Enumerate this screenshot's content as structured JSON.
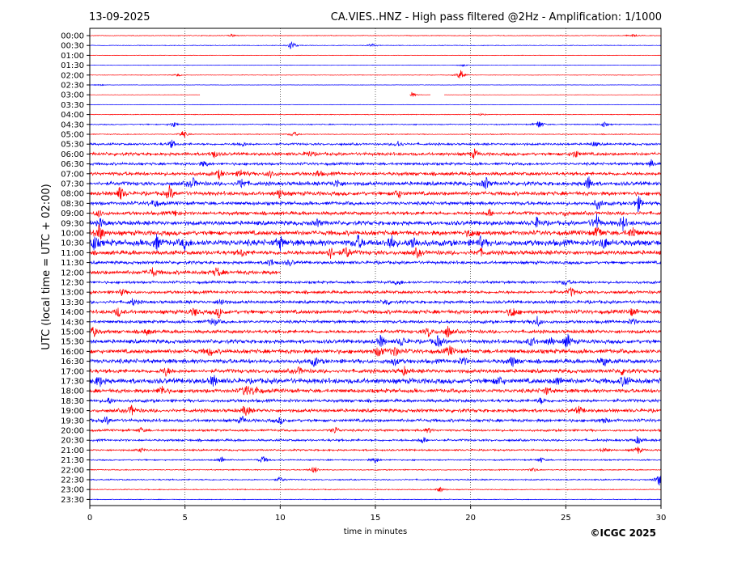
{
  "header": {
    "date": "13-09-2025",
    "title": "CA.VIES..HNZ - High pass filtered @2Hz - Amplification: 1/1000"
  },
  "footer": {
    "copyright": "©ICGC 2025"
  },
  "chart_data": {
    "type": "line",
    "title": "CA.VIES..HNZ - High pass filtered @2Hz - Amplification: 1/1000",
    "xlabel": "time in minutes",
    "ylabel": "UTC (local time = UTC + 02:00)",
    "xlim": [
      0,
      30
    ],
    "x_ticks": [
      "0",
      "5",
      "10",
      "15",
      "20",
      "25",
      "30"
    ],
    "vertical_gridlines": "dotted at every 5 minutes",
    "row_labels": [
      "00:00",
      "00:30",
      "01:00",
      "01:30",
      "02:00",
      "02:30",
      "03:00",
      "03:30",
      "04:00",
      "04:30",
      "05:00",
      "05:30",
      "06:00",
      "06:30",
      "07:00",
      "07:30",
      "08:00",
      "08:30",
      "09:00",
      "09:30",
      "10:00",
      "10:30",
      "11:00",
      "11:30",
      "12:00",
      "12:30",
      "13:00",
      "13:30",
      "14:00",
      "14:30",
      "15:00",
      "15:30",
      "16:00",
      "16:30",
      "17:00",
      "17:30",
      "18:00",
      "18:30",
      "19:00",
      "19:30",
      "20:00",
      "20:30",
      "21:00",
      "21:30",
      "22:00",
      "22:30",
      "23:00",
      "23:30"
    ],
    "series_colors": {
      "even_rows": "#ff0000",
      "odd_rows": "#0000ff"
    },
    "traces": [
      {
        "time": "00:00",
        "color": "red",
        "noise": 0.08,
        "events": [
          [
            7.5,
            0.3
          ],
          [
            28.5,
            0.3
          ]
        ]
      },
      {
        "time": "00:30",
        "color": "blue",
        "noise": 0.08,
        "events": [
          [
            10.6,
            1.0
          ],
          [
            14.8,
            0.4
          ]
        ]
      },
      {
        "time": "01:00",
        "color": "red",
        "noise": 0.05,
        "events": []
      },
      {
        "time": "01:30",
        "color": "blue",
        "noise": 0.05,
        "events": [
          [
            19.6,
            0.2
          ]
        ]
      },
      {
        "time": "02:00",
        "color": "red",
        "noise": 0.06,
        "events": [
          [
            4.6,
            0.3
          ],
          [
            19.5,
            1.2
          ]
        ]
      },
      {
        "time": "02:30",
        "color": "blue",
        "noise": 0.05,
        "events": [
          [
            0.5,
            0.2
          ]
        ]
      },
      {
        "time": "03:00",
        "color": "red",
        "noise": 0.04,
        "gaps": [
          [
            5.8,
            16.8
          ],
          [
            17.9,
            18.6
          ]
        ],
        "events": [
          [
            16.9,
            0.6
          ]
        ]
      },
      {
        "time": "03:30",
        "color": "blue",
        "noise": 0.05,
        "events": []
      },
      {
        "time": "04:00",
        "color": "red",
        "noise": 0.08,
        "events": [
          [
            20.5,
            0.2
          ]
        ]
      },
      {
        "time": "04:30",
        "color": "blue",
        "noise": 0.12,
        "events": [
          [
            4.4,
            0.6
          ],
          [
            23.6,
            0.9
          ],
          [
            27.0,
            0.5
          ]
        ]
      },
      {
        "time": "05:00",
        "color": "red",
        "noise": 0.1,
        "events": [
          [
            4.9,
            0.9
          ],
          [
            10.7,
            0.6
          ]
        ]
      },
      {
        "time": "05:30",
        "color": "blue",
        "noise": 0.25,
        "events": [
          [
            4.3,
            0.8
          ],
          [
            8.0,
            0.5
          ],
          [
            16.2,
            0.7
          ],
          [
            26.5,
            0.5
          ]
        ]
      },
      {
        "time": "06:00",
        "color": "red",
        "noise": 0.35,
        "events": [
          [
            6.5,
            0.8
          ],
          [
            11.5,
            0.6
          ],
          [
            20.2,
            0.9
          ],
          [
            25.5,
            0.8
          ]
        ]
      },
      {
        "time": "06:30",
        "color": "blue",
        "noise": 0.3,
        "events": [
          [
            6.0,
            0.6
          ],
          [
            29.5,
            0.7
          ]
        ]
      },
      {
        "time": "07:00",
        "color": "red",
        "noise": 0.4,
        "events": [
          [
            6.8,
            0.8
          ],
          [
            8.0,
            0.9
          ],
          [
            9.5,
            0.7
          ],
          [
            12.0,
            0.6
          ]
        ]
      },
      {
        "time": "07:30",
        "color": "blue",
        "noise": 0.45,
        "events": [
          [
            5.4,
            1.1
          ],
          [
            8.0,
            1.0
          ],
          [
            13.0,
            0.8
          ],
          [
            20.8,
            1.2
          ],
          [
            26.2,
            1.4
          ]
        ]
      },
      {
        "time": "08:00",
        "color": "red",
        "noise": 0.45,
        "events": [
          [
            1.6,
            1.4
          ],
          [
            4.2,
            1.3
          ],
          [
            10.0,
            1.0
          ],
          [
            16.2,
            0.9
          ]
        ]
      },
      {
        "time": "08:30",
        "color": "blue",
        "noise": 0.4,
        "events": [
          [
            3.4,
            0.9
          ],
          [
            26.7,
            1.2
          ],
          [
            28.8,
            1.5
          ]
        ]
      },
      {
        "time": "09:00",
        "color": "red",
        "noise": 0.4,
        "events": [
          [
            0.5,
            0.7
          ],
          [
            4.5,
            0.6
          ],
          [
            21.0,
            0.7
          ],
          [
            25.0,
            0.5
          ]
        ]
      },
      {
        "time": "09:30",
        "color": "blue",
        "noise": 0.5,
        "events": [
          [
            0.6,
            0.8
          ],
          [
            12.0,
            0.7
          ],
          [
            23.5,
            1.0
          ],
          [
            26.6,
            1.8
          ],
          [
            28.0,
            1.4
          ]
        ]
      },
      {
        "time": "10:00",
        "color": "red",
        "noise": 0.55,
        "events": [
          [
            0.5,
            1.8
          ],
          [
            20.0,
            0.8
          ],
          [
            26.7,
            1.3
          ],
          [
            28.5,
            1.2
          ]
        ]
      },
      {
        "time": "10:30",
        "color": "blue",
        "noise": 0.7,
        "events": [
          [
            0.2,
            1.5
          ],
          [
            3.5,
            1.4
          ],
          [
            5.0,
            1.1
          ],
          [
            10.0,
            1.2
          ],
          [
            14.1,
            1.3
          ],
          [
            15.8,
            1.6
          ],
          [
            17.0,
            1.4
          ],
          [
            20.5,
            1.0
          ],
          [
            27.0,
            1.2
          ]
        ]
      },
      {
        "time": "11:00",
        "color": "red",
        "noise": 0.5,
        "events": [
          [
            8.0,
            0.7
          ],
          [
            12.6,
            1.4
          ],
          [
            13.5,
            1.2
          ],
          [
            17.2,
            0.8
          ],
          [
            20.5,
            0.7
          ]
        ]
      },
      {
        "time": "11:30",
        "color": "blue",
        "noise": 0.35,
        "events": [
          [
            9.5,
            0.8
          ],
          [
            10.5,
            0.6
          ]
        ]
      },
      {
        "time": "12:00",
        "color": "red",
        "noise": 0.45,
        "end": 10.0,
        "events": [
          [
            3.3,
            0.9
          ],
          [
            6.7,
            1.0
          ]
        ]
      },
      {
        "time": "12:30",
        "color": "blue",
        "noise": 0.3,
        "events": [
          [
            16.2,
            0.6
          ],
          [
            25.0,
            0.6
          ]
        ]
      },
      {
        "time": "13:00",
        "color": "red",
        "noise": 0.35,
        "events": [
          [
            1.7,
            0.6
          ],
          [
            25.3,
            0.9
          ]
        ]
      },
      {
        "time": "13:30",
        "color": "blue",
        "noise": 0.35,
        "events": [
          [
            2.3,
            0.7
          ],
          [
            6.9,
            0.8
          ],
          [
            15.6,
            0.6
          ]
        ]
      },
      {
        "time": "14:00",
        "color": "red",
        "noise": 0.45,
        "events": [
          [
            1.5,
            0.9
          ],
          [
            5.5,
            0.8
          ],
          [
            6.8,
            1.0
          ],
          [
            22.2,
            1.2
          ],
          [
            28.5,
            0.7
          ]
        ]
      },
      {
        "time": "14:30",
        "color": "blue",
        "noise": 0.35,
        "events": [
          [
            6.5,
            0.9
          ],
          [
            23.5,
            1.0
          ],
          [
            28.5,
            0.7
          ]
        ]
      },
      {
        "time": "15:00",
        "color": "red",
        "noise": 0.4,
        "events": [
          [
            0.2,
            1.0
          ],
          [
            3.0,
            0.6
          ],
          [
            17.8,
            1.0
          ],
          [
            18.8,
            1.2
          ]
        ]
      },
      {
        "time": "15:30",
        "color": "blue",
        "noise": 0.45,
        "events": [
          [
            15.3,
            1.2
          ],
          [
            16.4,
            1.0
          ],
          [
            18.3,
            1.2
          ],
          [
            23.2,
            1.0
          ],
          [
            24.2,
            0.9
          ],
          [
            25.1,
            1.4
          ]
        ]
      },
      {
        "time": "16:00",
        "color": "red",
        "noise": 0.5,
        "events": [
          [
            6.3,
            0.8
          ],
          [
            15.2,
            1.2
          ],
          [
            16.0,
            1.1
          ],
          [
            18.9,
            1.0
          ]
        ]
      },
      {
        "time": "16:30",
        "color": "blue",
        "noise": 0.5,
        "events": [
          [
            11.8,
            0.9
          ],
          [
            16.0,
            0.8
          ],
          [
            19.6,
            0.8
          ],
          [
            22.2,
            1.0
          ],
          [
            27.0,
            0.9
          ]
        ]
      },
      {
        "time": "17:00",
        "color": "red",
        "noise": 0.45,
        "events": [
          [
            4.0,
            0.9
          ],
          [
            11.0,
            0.7
          ],
          [
            16.5,
            0.7
          ],
          [
            28.0,
            0.7
          ]
        ]
      },
      {
        "time": "17:30",
        "color": "blue",
        "noise": 0.6,
        "events": [
          [
            0.5,
            1.0
          ],
          [
            6.5,
            1.0
          ],
          [
            21.5,
            0.9
          ],
          [
            24.6,
            0.9
          ],
          [
            28.1,
            1.2
          ]
        ]
      },
      {
        "time": "18:00",
        "color": "red",
        "noise": 0.45,
        "events": [
          [
            3.8,
            1.0
          ],
          [
            8.2,
            1.2
          ],
          [
            8.7,
            0.9
          ],
          [
            24.0,
            0.7
          ]
        ]
      },
      {
        "time": "18:30",
        "color": "blue",
        "noise": 0.35,
        "events": [
          [
            1.0,
            0.6
          ],
          [
            23.7,
            0.6
          ]
        ]
      },
      {
        "time": "19:00",
        "color": "red",
        "noise": 0.4,
        "events": [
          [
            2.2,
            1.0
          ],
          [
            8.2,
            1.2
          ],
          [
            25.7,
            0.7
          ]
        ]
      },
      {
        "time": "19:30",
        "color": "blue",
        "noise": 0.35,
        "events": [
          [
            0.9,
            0.7
          ],
          [
            8.0,
            0.7
          ],
          [
            10.0,
            0.6
          ],
          [
            27.0,
            0.6
          ]
        ]
      },
      {
        "time": "20:00",
        "color": "red",
        "noise": 0.25,
        "events": [
          [
            2.7,
            0.5
          ],
          [
            12.9,
            0.7
          ],
          [
            17.8,
            0.5
          ]
        ]
      },
      {
        "time": "20:30",
        "color": "blue",
        "noise": 0.25,
        "events": [
          [
            17.5,
            0.7
          ],
          [
            28.8,
            0.8
          ]
        ]
      },
      {
        "time": "21:00",
        "color": "red",
        "noise": 0.2,
        "events": [
          [
            2.7,
            0.4
          ],
          [
            27.0,
            0.5
          ],
          [
            28.8,
            0.7
          ]
        ]
      },
      {
        "time": "21:30",
        "color": "blue",
        "noise": 0.15,
        "events": [
          [
            6.9,
            0.7
          ],
          [
            9.1,
            0.8
          ],
          [
            15.0,
            0.6
          ],
          [
            23.7,
            0.5
          ]
        ]
      },
      {
        "time": "22:00",
        "color": "red",
        "noise": 0.12,
        "events": [
          [
            11.8,
            0.8
          ],
          [
            23.3,
            0.4
          ]
        ]
      },
      {
        "time": "22:30",
        "color": "blue",
        "noise": 0.15,
        "events": [
          [
            10.0,
            0.5
          ],
          [
            29.9,
            1.2
          ]
        ]
      },
      {
        "time": "23:00",
        "color": "red",
        "noise": 0.1,
        "events": [
          [
            18.4,
            0.6
          ]
        ]
      },
      {
        "time": "23:30",
        "color": "blue",
        "noise": 0.08,
        "events": []
      }
    ]
  }
}
